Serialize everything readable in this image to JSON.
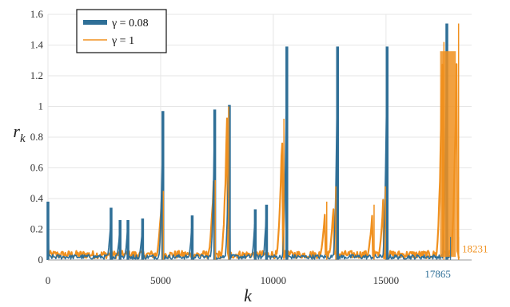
{
  "chart_data": {
    "type": "line",
    "title": "",
    "xlabel": "k",
    "ylabel_main": "r",
    "ylabel_sub": "k",
    "xlim": [
      0,
      18800
    ],
    "ylim": [
      0,
      1.6
    ],
    "xticks": [
      0,
      5000,
      10000,
      15000
    ],
    "xtick_labels": [
      "0",
      "5000",
      "10000",
      "15000"
    ],
    "yticks": [
      0,
      0.2,
      0.4,
      0.6,
      0.8,
      1.0,
      1.2,
      1.4,
      1.6
    ],
    "ytick_labels": [
      "0",
      "0.2",
      "0.4",
      "0.6",
      "0.8",
      "1",
      "1.2",
      "1.4",
      "1.6"
    ],
    "grid": true,
    "legend_position": "top-left",
    "series": [
      {
        "name": "γ = 0.08",
        "color": "#2f6f97",
        "end_k": 17865,
        "end_label": "17865",
        "spikes": [
          {
            "k": 0,
            "value": 0.38
          },
          {
            "k": 2800,
            "value": 0.34
          },
          {
            "k": 3200,
            "value": 0.26
          },
          {
            "k": 3550,
            "value": 0.26
          },
          {
            "k": 4200,
            "value": 0.27
          },
          {
            "k": 5100,
            "value": 0.97
          },
          {
            "k": 6400,
            "value": 0.29
          },
          {
            "k": 7400,
            "value": 0.98
          },
          {
            "k": 8050,
            "value": 1.01
          },
          {
            "k": 9200,
            "value": 0.33
          },
          {
            "k": 9700,
            "value": 0.36
          },
          {
            "k": 10600,
            "value": 1.39
          },
          {
            "k": 12850,
            "value": 1.39
          },
          {
            "k": 15050,
            "value": 1.39
          },
          {
            "k": 17700,
            "value": 1.54
          }
        ]
      },
      {
        "name": "γ = 1",
        "color": "#f0901e",
        "end_k": 18231,
        "end_label": "18231",
        "spikes": [
          {
            "k": 5050,
            "value": 0.45
          },
          {
            "k": 7350,
            "value": 0.52
          },
          {
            "k": 7950,
            "value": 1.0
          },
          {
            "k": 10400,
            "value": 0.92
          },
          {
            "k": 12300,
            "value": 0.38
          },
          {
            "k": 12700,
            "value": 0.48
          },
          {
            "k": 14400,
            "value": 0.36
          },
          {
            "k": 14900,
            "value": 0.48
          },
          {
            "k": 17500,
            "value": 1.42
          },
          {
            "k": 18150,
            "value": 1.54
          }
        ]
      }
    ]
  }
}
